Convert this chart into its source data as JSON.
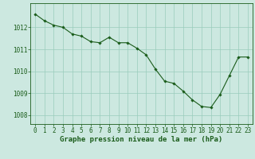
{
  "x": [
    0,
    1,
    2,
    3,
    4,
    5,
    6,
    7,
    8,
    9,
    10,
    11,
    12,
    13,
    14,
    15,
    16,
    17,
    18,
    19,
    20,
    21,
    22,
    23
  ],
  "y": [
    1012.6,
    1012.3,
    1012.1,
    1012.0,
    1011.7,
    1011.6,
    1011.35,
    1011.3,
    1011.55,
    1011.3,
    1011.3,
    1011.05,
    1010.75,
    1010.1,
    1009.55,
    1009.45,
    1009.1,
    1008.7,
    1008.4,
    1008.35,
    1008.95,
    1009.8,
    1010.65,
    1010.65
  ],
  "line_color": "#1a5c1a",
  "marker": "D",
  "marker_size": 1.8,
  "bg_color": "#cce8e0",
  "grid_color": "#99ccbb",
  "xlabel": "Graphe pression niveau de la mer (hPa)",
  "xlabel_color": "#1a5c1a",
  "xlabel_fontsize": 6.5,
  "tick_color": "#1a5c1a",
  "tick_fontsize": 5.5,
  "ytick_fontsize": 5.5,
  "yticks": [
    1008,
    1009,
    1010,
    1011,
    1012
  ],
  "ylim": [
    1007.6,
    1013.1
  ],
  "xlim": [
    -0.5,
    23.5
  ]
}
